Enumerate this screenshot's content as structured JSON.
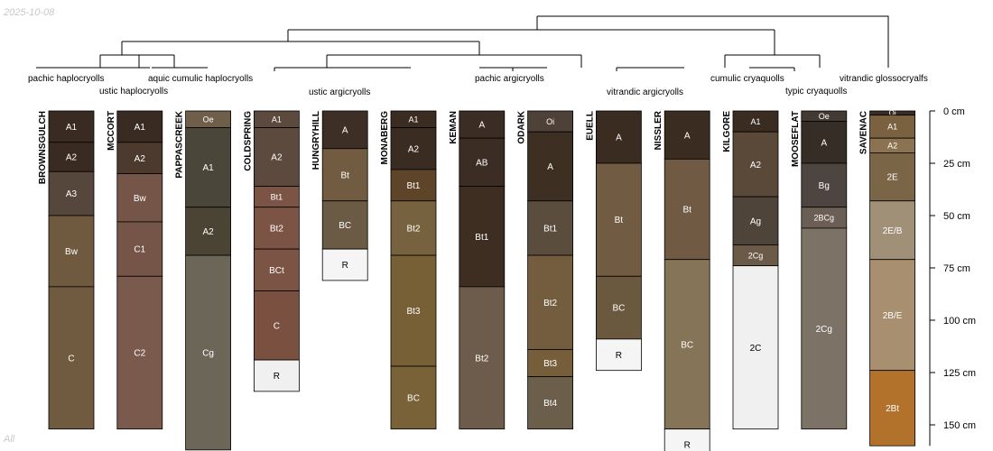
{
  "date_stamp": "2025-10-08",
  "footer_label": "All",
  "depth_axis": {
    "unit": "cm",
    "max": 160,
    "ticks": [
      {
        "value": 0,
        "label": "0 cm"
      },
      {
        "value": 25,
        "label": "25 cm"
      },
      {
        "value": 50,
        "label": "50 cm"
      },
      {
        "value": 75,
        "label": "75 cm"
      },
      {
        "value": 100,
        "label": "100 cm"
      },
      {
        "value": 125,
        "label": "125 cm"
      },
      {
        "value": 150,
        "label": "150 cm"
      }
    ]
  },
  "taxa_labels": [
    {
      "id": "t1",
      "text": "pachic haplocryolls"
    },
    {
      "id": "t2",
      "text": "ustic haplocryolls"
    },
    {
      "id": "t3",
      "text": "aquic cumulic haplocryolls"
    },
    {
      "id": "t4",
      "text": "ustic argicryolls"
    },
    {
      "id": "t5",
      "text": "pachic argicryolls"
    },
    {
      "id": "t6",
      "text": "vitrandic argicryolls"
    },
    {
      "id": "t7",
      "text": "cumulic cryaquolls"
    },
    {
      "id": "t8",
      "text": "typic cryaquolls"
    },
    {
      "id": "t9",
      "text": "vitrandic glossocryalfs"
    }
  ],
  "profiles": [
    {
      "name": "BROWNSGULCH",
      "horizons": [
        {
          "name": "A1",
          "top": 0,
          "bottom": 15,
          "color": "#3a2b22"
        },
        {
          "name": "A2",
          "top": 15,
          "bottom": 29,
          "color": "#3a2b22"
        },
        {
          "name": "A3",
          "top": 29,
          "bottom": 50,
          "color": "#55473b"
        },
        {
          "name": "Bw",
          "top": 50,
          "bottom": 84,
          "color": "#6f5a40"
        },
        {
          "name": "C",
          "top": 84,
          "bottom": 152,
          "color": "#705b40"
        }
      ]
    },
    {
      "name": "MCCORT",
      "horizons": [
        {
          "name": "A1",
          "top": 0,
          "bottom": 15,
          "color": "#3a2b22"
        },
        {
          "name": "A2",
          "top": 15,
          "bottom": 30,
          "color": "#4c3a2e"
        },
        {
          "name": "Bw",
          "top": 30,
          "bottom": 53,
          "color": "#745547"
        },
        {
          "name": "C1",
          "top": 53,
          "bottom": 79,
          "color": "#745547"
        },
        {
          "name": "C2",
          "top": 79,
          "bottom": 152,
          "color": "#7a5a4c"
        }
      ]
    },
    {
      "name": "PAPPASCREEK",
      "horizons": [
        {
          "name": "Oe",
          "top": 0,
          "bottom": 8,
          "color": "#6f5e49"
        },
        {
          "name": "A1",
          "top": 8,
          "bottom": 46,
          "color": "#4a473a"
        },
        {
          "name": "A2",
          "top": 46,
          "bottom": 69,
          "color": "#4b4333"
        },
        {
          "name": "Cg",
          "top": 69,
          "bottom": 162,
          "color": "#6b6657"
        }
      ]
    },
    {
      "name": "COLDSPRING",
      "horizons": [
        {
          "name": "A1",
          "top": 0,
          "bottom": 8,
          "color": "#5c4a3e"
        },
        {
          "name": "A2",
          "top": 8,
          "bottom": 36,
          "color": "#5c4a3e"
        },
        {
          "name": "Bt1",
          "top": 36,
          "bottom": 46,
          "color": "#7c5445"
        },
        {
          "name": "Bt2",
          "top": 46,
          "bottom": 66,
          "color": "#7c5445"
        },
        {
          "name": "BCt",
          "top": 66,
          "bottom": 86,
          "color": "#7c5445"
        },
        {
          "name": "C",
          "top": 86,
          "bottom": 119,
          "color": "#7a5040"
        },
        {
          "name": "R",
          "top": 119,
          "bottom": 134,
          "color": "#f0f0f0"
        }
      ]
    },
    {
      "name": "HUNGRYHILL",
      "horizons": [
        {
          "name": "A",
          "top": 0,
          "bottom": 18,
          "color": "#3d2f26"
        },
        {
          "name": "Bt",
          "top": 18,
          "bottom": 43,
          "color": "#715b41"
        },
        {
          "name": "BC",
          "top": 43,
          "bottom": 66,
          "color": "#6b5a44"
        },
        {
          "name": "R",
          "top": 66,
          "bottom": 81,
          "color": "#f5f5f5"
        }
      ]
    },
    {
      "name": "MONABERG",
      "horizons": [
        {
          "name": "A1",
          "top": 0,
          "bottom": 8,
          "color": "#3b2c22"
        },
        {
          "name": "A2",
          "top": 8,
          "bottom": 28,
          "color": "#3b2c22"
        },
        {
          "name": "Bt1",
          "top": 28,
          "bottom": 43,
          "color": "#5e4428"
        },
        {
          "name": "Bt2",
          "top": 43,
          "bottom": 69,
          "color": "#776240"
        },
        {
          "name": "Bt3",
          "top": 69,
          "bottom": 122,
          "color": "#776035"
        },
        {
          "name": "BC",
          "top": 122,
          "bottom": 152,
          "color": "#7a6238"
        }
      ]
    },
    {
      "name": "KEMAN",
      "horizons": [
        {
          "name": "A",
          "top": 0,
          "bottom": 13,
          "color": "#3b2c24"
        },
        {
          "name": "AB",
          "top": 13,
          "bottom": 36,
          "color": "#3b2c24"
        },
        {
          "name": "Bt1",
          "top": 36,
          "bottom": 84,
          "color": "#3d2e21"
        },
        {
          "name": "Bt2",
          "top": 84,
          "bottom": 152,
          "color": "#6d5c4b"
        }
      ]
    },
    {
      "name": "ODARK",
      "horizons": [
        {
          "name": "Oi",
          "top": 0,
          "bottom": 10,
          "color": "#4e4137"
        },
        {
          "name": "A",
          "top": 10,
          "bottom": 43,
          "color": "#3d2f22"
        },
        {
          "name": "Bt1",
          "top": 43,
          "bottom": 69,
          "color": "#5b4d3e"
        },
        {
          "name": "Bt2",
          "top": 69,
          "bottom": 114,
          "color": "#735d3e"
        },
        {
          "name": "Bt3",
          "top": 114,
          "bottom": 127,
          "color": "#775e3a"
        },
        {
          "name": "Bt4",
          "top": 127,
          "bottom": 152,
          "color": "#6b5f4c"
        }
      ]
    },
    {
      "name": "EUELL",
      "horizons": [
        {
          "name": "A",
          "top": 0,
          "bottom": 25,
          "color": "#3b2c22"
        },
        {
          "name": "Bt",
          "top": 25,
          "bottom": 79,
          "color": "#715b42"
        },
        {
          "name": "BC",
          "top": 79,
          "bottom": 109,
          "color": "#6a583f"
        },
        {
          "name": "R",
          "top": 109,
          "bottom": 124,
          "color": "#f5f5f5"
        }
      ]
    },
    {
      "name": "NISSLER",
      "horizons": [
        {
          "name": "A",
          "top": 0,
          "bottom": 23,
          "color": "#3b2c22"
        },
        {
          "name": "Bt",
          "top": 23,
          "bottom": 71,
          "color": "#705a43"
        },
        {
          "name": "BC",
          "top": 71,
          "bottom": 152,
          "color": "#857458"
        },
        {
          "name": "R",
          "top": 152,
          "bottom": 167,
          "color": "#f5f5f5"
        }
      ]
    },
    {
      "name": "KILGORE",
      "horizons": [
        {
          "name": "A1",
          "top": 0,
          "bottom": 10,
          "color": "#3b2c22"
        },
        {
          "name": "A2",
          "top": 10,
          "bottom": 41,
          "color": "#5a4838"
        },
        {
          "name": "Ag",
          "top": 41,
          "bottom": 64,
          "color": "#4e4439"
        },
        {
          "name": "2Cg",
          "top": 64,
          "bottom": 74,
          "color": "#6c5a49"
        },
        {
          "name": "2C",
          "top": 74,
          "bottom": 152,
          "color": "#f0f0f0"
        }
      ]
    },
    {
      "name": "MOOSEFLAT",
      "horizons": [
        {
          "name": "Oe",
          "top": 0,
          "bottom": 5,
          "color": "#423a33"
        },
        {
          "name": "A",
          "top": 5,
          "bottom": 25,
          "color": "#362d27"
        },
        {
          "name": "Bg",
          "top": 25,
          "bottom": 46,
          "color": "#4e4540"
        },
        {
          "name": "2BCg",
          "top": 46,
          "bottom": 56,
          "color": "#6b5f55"
        },
        {
          "name": "2Cg",
          "top": 56,
          "bottom": 152,
          "color": "#7c7265"
        }
      ]
    },
    {
      "name": "SAVENAC",
      "horizons": [
        {
          "name": "Oi",
          "top": 0,
          "bottom": 2,
          "color": "#3a2d22"
        },
        {
          "name": "A1",
          "top": 2,
          "bottom": 13,
          "color": "#7a6140"
        },
        {
          "name": "A2",
          "top": 13,
          "bottom": 20,
          "color": "#8b7352"
        },
        {
          "name": "2E",
          "top": 20,
          "bottom": 43,
          "color": "#7b6547"
        },
        {
          "name": "2E/B",
          "top": 43,
          "bottom": 71,
          "color": "#a09078"
        },
        {
          "name": "2B/E",
          "top": 71,
          "bottom": 124,
          "color": "#a88f70"
        },
        {
          "name": "2Bt",
          "top": 124,
          "bottom": 160,
          "color": "#b2722b"
        }
      ]
    }
  ]
}
